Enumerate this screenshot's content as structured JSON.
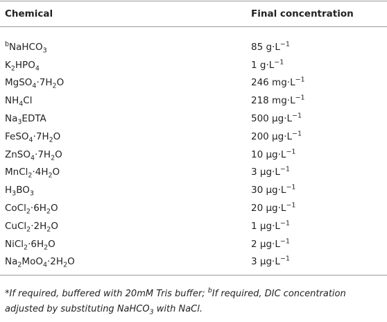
{
  "table": {
    "header": [
      "Chemical",
      "Final concentration"
    ],
    "rows": [
      [
        [
          {
            "sup": "b"
          },
          "NaHCO",
          {
            "sub": "3"
          }
        ],
        [
          "85 g·L",
          {
            "sup": "−1"
          }
        ]
      ],
      [
        [
          "K",
          {
            "sub": "2"
          },
          "HPO",
          {
            "sub": "4"
          }
        ],
        [
          "1 g·L",
          {
            "sup": "−1"
          }
        ]
      ],
      [
        [
          "MgSO",
          {
            "sub": "4"
          },
          "·7H",
          {
            "sub": "2"
          },
          "O"
        ],
        [
          "246 mg·L",
          {
            "sup": "−1"
          }
        ]
      ],
      [
        [
          "NH",
          {
            "sub": "4"
          },
          "Cl"
        ],
        [
          "218 mg·L",
          {
            "sup": "−1"
          }
        ]
      ],
      [
        [
          "Na",
          {
            "sub": "3"
          },
          "EDTA"
        ],
        [
          "500 μg·L",
          {
            "sup": "−1"
          }
        ]
      ],
      [
        [
          "FeSO",
          {
            "sub": "4"
          },
          "·7H",
          {
            "sub": "2"
          },
          "O"
        ],
        [
          "200 μg·L",
          {
            "sup": "−1"
          }
        ]
      ],
      [
        [
          "ZnSO",
          {
            "sub": "4"
          },
          "·7H",
          {
            "sub": "2"
          },
          "O"
        ],
        [
          "10 μg·L",
          {
            "sup": "−1"
          }
        ]
      ],
      [
        [
          "MnCl",
          {
            "sub": "2"
          },
          "·4H",
          {
            "sub": "2"
          },
          "O"
        ],
        [
          "3 μg·L",
          {
            "sup": "−1"
          }
        ]
      ],
      [
        [
          "H",
          {
            "sub": "3"
          },
          "BO",
          {
            "sub": "3"
          }
        ],
        [
          "30 μg·L",
          {
            "sup": "−1"
          }
        ]
      ],
      [
        [
          "CoCl",
          {
            "sub": "2"
          },
          "·6H",
          {
            "sub": "2"
          },
          "O"
        ],
        [
          "20 μg·L",
          {
            "sup": "−1"
          }
        ]
      ],
      [
        [
          "CuCl",
          {
            "sub": "2"
          },
          "·2H",
          {
            "sub": "2"
          },
          "O"
        ],
        [
          "1 μg·L",
          {
            "sup": "−1"
          }
        ]
      ],
      [
        [
          "NiCl",
          {
            "sub": "2"
          },
          "·6H",
          {
            "sub": "2"
          },
          "O"
        ],
        [
          "2 μg·L",
          {
            "sup": "−1"
          }
        ]
      ],
      [
        [
          "Na",
          {
            "sub": "2"
          },
          "MoO",
          {
            "sub": "4"
          },
          "·2H",
          {
            "sub": "2"
          },
          "O"
        ],
        [
          "3 μg·L",
          {
            "sup": "−1"
          }
        ]
      ]
    ]
  },
  "footnote": [
    "*If required, buffered with 20mM Tris buffer; ",
    {
      "sup": "b"
    },
    "If required, DIC concentration adjusted by substituting NaHCO",
    {
      "sub": "3"
    },
    " with NaCl."
  ]
}
